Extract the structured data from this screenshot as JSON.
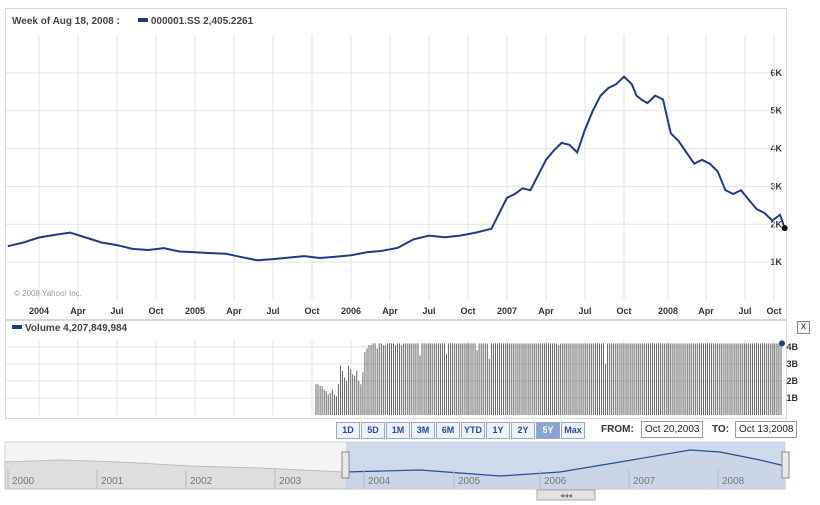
{
  "header": {
    "week_label": "Week of Aug 18, 2008 :",
    "symbol": "000001.SS",
    "value": "2,405.2261"
  },
  "copyright": "© 2008 Yahoo! Inc.",
  "volume_header": {
    "label": "Volume",
    "value": "4,207,849,984"
  },
  "close_label": "x",
  "ranges": {
    "items": [
      "1D",
      "5D",
      "1M",
      "3M",
      "6M",
      "YTD",
      "1Y",
      "2Y",
      "5Y",
      "Max"
    ],
    "active": "5Y"
  },
  "from_label": "FROM:",
  "from_value": "Oct 20,2003",
  "to_label": "TO:",
  "to_value": "Oct 13,2008",
  "overview_years": [
    "2000",
    "2001",
    "2002",
    "2003",
    "2004",
    "2005",
    "2006",
    "2007",
    "2008"
  ],
  "colors": {
    "line": "#1f3a8a",
    "grid": "#e3e3e3",
    "overview_fill": "#c7d5ea"
  },
  "chart_data": [
    {
      "type": "line",
      "x_ticks": [
        "2004",
        "Apr",
        "Jul",
        "Oct",
        "2005",
        "Apr",
        "Jul",
        "Oct",
        "2006",
        "Apr",
        "Jul",
        "Oct",
        "2007",
        "Apr",
        "Jul",
        "Oct",
        "2008",
        "Apr",
        "Jul",
        "Oct"
      ],
      "y_ticks": [
        "1K",
        "2K",
        "3K",
        "4K",
        "5K",
        "6K"
      ],
      "ylim": [
        0,
        7000
      ],
      "grid": true,
      "x": [
        2003.8,
        2003.9,
        2004.0,
        2004.1,
        2004.2,
        2004.3,
        2004.4,
        2004.5,
        2004.6,
        2004.7,
        2004.8,
        2004.9,
        2005.0,
        2005.1,
        2005.2,
        2005.3,
        2005.4,
        2005.5,
        2005.6,
        2005.7,
        2005.8,
        2005.9,
        2006.0,
        2006.1,
        2006.2,
        2006.3,
        2006.4,
        2006.5,
        2006.6,
        2006.7,
        2006.8,
        2006.9,
        2007.0,
        2007.05,
        2007.1,
        2007.15,
        2007.2,
        2007.25,
        2007.3,
        2007.35,
        2007.4,
        2007.45,
        2007.5,
        2007.55,
        2007.6,
        2007.65,
        2007.7,
        2007.75,
        2007.8,
        2007.83,
        2007.86,
        2007.9,
        2007.95,
        2008.0,
        2008.05,
        2008.1,
        2008.15,
        2008.2,
        2008.25,
        2008.3,
        2008.35,
        2008.4,
        2008.45,
        2008.5,
        2008.55,
        2008.6,
        2008.65,
        2008.7,
        2008.75,
        2008.78
      ],
      "values": [
        1420,
        1520,
        1650,
        1720,
        1780,
        1650,
        1520,
        1450,
        1350,
        1320,
        1370,
        1280,
        1260,
        1240,
        1220,
        1130,
        1050,
        1080,
        1120,
        1160,
        1110,
        1140,
        1180,
        1260,
        1300,
        1380,
        1600,
        1700,
        1660,
        1700,
        1780,
        1880,
        2700,
        2800,
        2950,
        2900,
        3300,
        3700,
        3950,
        4150,
        4100,
        3900,
        4500,
        5000,
        5400,
        5600,
        5700,
        5900,
        5700,
        5400,
        5300,
        5200,
        5400,
        5300,
        4400,
        4200,
        3900,
        3600,
        3700,
        3600,
        3400,
        2900,
        2800,
        2900,
        2650,
        2400,
        2300,
        2100,
        2250,
        1900
      ]
    },
    {
      "type": "bar",
      "series": [
        {
          "name": "Volume"
        }
      ],
      "y_ticks": [
        "1B",
        "2B",
        "3B",
        "4B"
      ],
      "ylim": [
        0,
        4400000000
      ],
      "values": [
        1800000000,
        1800000000,
        1700000000,
        1700000000,
        1500000000,
        1400000000,
        1200000000,
        1300000000,
        1500000000,
        1200000000,
        1100000000,
        1800000000,
        2900000000,
        2600000000,
        2200000000,
        2000000000,
        2900000000,
        2700000000,
        2400000000,
        2300000000,
        2600000000,
        2000000000,
        1800000000,
        2500000000,
        3700000000,
        3900000000,
        4100000000,
        4100000000,
        4200000000,
        4200000000,
        3900000000,
        4200000000,
        4200000000,
        4100000000,
        4100000000,
        4200000000,
        4200000000,
        4200000000,
        4200000000,
        4100000000,
        4200000000,
        4200000000,
        4100000000,
        4200000000,
        4200000000,
        4200000000,
        4200000000,
        4200000000,
        4200000000,
        4200000000,
        4200000000,
        3500000000,
        4200000000,
        4200000000,
        4200000000,
        4200000000,
        4200000000,
        4200000000,
        4200000000,
        4200000000,
        4200000000,
        4200000000,
        4200000000,
        4200000000,
        3600000000,
        4200000000,
        4200000000,
        4200000000,
        4200000000,
        4200000000,
        4200000000,
        4200000000,
        4200000000,
        4200000000,
        4200000000,
        4200000000,
        4200000000,
        4200000000,
        4200000000,
        3800000000,
        4200000000,
        4200000000,
        4200000000,
        4200000000,
        4200000000,
        3300000000,
        4200000000,
        4200000000,
        4200000000,
        4200000000,
        4200000000,
        4200000000,
        4200000000,
        4200000000,
        4200000000,
        4200000000,
        4200000000,
        4200000000,
        4200000000,
        4200000000,
        4200000000,
        4200000000,
        4200000000,
        4200000000,
        4200000000,
        4200000000,
        4200000000,
        4200000000,
        4200000000,
        4200000000,
        4200000000,
        4200000000,
        4200000000,
        4200000000,
        4200000000,
        4200000000,
        4200000000,
        4200000000,
        4200000000,
        4100000000,
        4200000000,
        4200000000,
        4200000000,
        4200000000,
        4200000000,
        4200000000,
        4200000000,
        4200000000,
        4200000000,
        4200000000,
        4200000000,
        4200000000,
        4200000000,
        4200000000,
        4200000000,
        4200000000,
        4200000000,
        4200000000,
        4200000000,
        4200000000,
        4200000000,
        4200000000,
        3000000000,
        4200000000,
        4200000000,
        4200000000,
        4200000000,
        4200000000,
        4200000000,
        4200000000,
        4200000000,
        4200000000,
        4200000000,
        4200000000,
        4200000000,
        4200000000,
        4200000000,
        4200000000,
        4200000000,
        4200000000,
        4200000000,
        4200000000,
        4200000000,
        4200000000,
        4200000000,
        4200000000,
        4200000000,
        4200000000,
        4200000000,
        4200000000,
        4200000000,
        4200000000,
        4200000000,
        4200000000,
        4200000000,
        4200000000,
        4200000000,
        4200000000,
        4200000000,
        4200000000,
        4200000000,
        4200000000,
        4200000000,
        4200000000,
        4200000000,
        4200000000,
        4200000000,
        4200000000,
        4200000000,
        4200000000,
        4200000000,
        4200000000,
        4200000000,
        4200000000,
        4200000000,
        4200000000,
        4200000000,
        4200000000,
        4200000000,
        4200000000,
        4200000000,
        4200000000,
        4200000000,
        4200000000,
        4200000000,
        4200000000,
        4200000000,
        4200000000,
        4200000000,
        4200000000,
        4200000000,
        4200000000,
        4200000000,
        4200000000,
        4200000000,
        4200000000,
        4200000000,
        4200000000,
        4200000000,
        4200000000,
        4200000000,
        4200000000,
        4200000000,
        4200000000,
        4200000000,
        4200000000,
        4200000000,
        4200000000,
        4200000000
      ]
    }
  ]
}
